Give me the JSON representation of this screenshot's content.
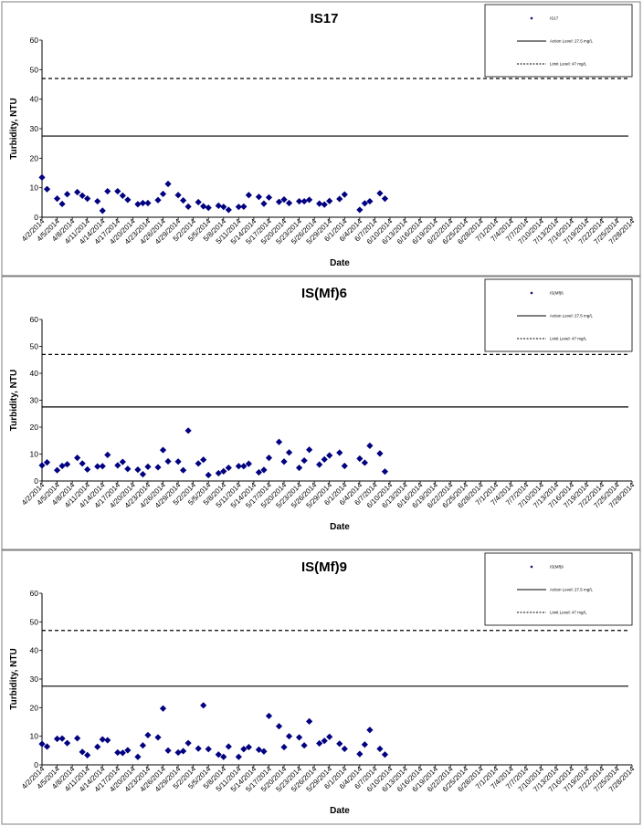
{
  "chart_data": [
    {
      "type": "scatter",
      "title": "IS17",
      "xlabel": "Date",
      "ylabel": "Turbidity, NTU",
      "ylim": [
        0,
        60
      ],
      "yticks": [
        0,
        10,
        20,
        30,
        40,
        50,
        60
      ],
      "legend_position": "top-right",
      "legend": [
        "IS17",
        "Action Level: 27.5 mg/L",
        "Limit Level: 47 mg/L"
      ],
      "action_level": 27.5,
      "limit_level": 47,
      "x_categories": [
        "4/2/2014",
        "4/5/2014",
        "4/8/2014",
        "4/11/2014",
        "4/14/2014",
        "4/17/2014",
        "4/20/2014",
        "4/23/2014",
        "4/26/2014",
        "4/29/2014",
        "5/2/2014",
        "5/5/2014",
        "5/8/2014",
        "5/11/2014",
        "5/14/2014",
        "5/17/2014",
        "5/20/2014",
        "5/23/2014",
        "5/26/2014",
        "5/29/2014",
        "6/1/2014",
        "6/4/2014",
        "6/7/2014",
        "6/10/2014",
        "6/13/2014",
        "6/16/2014",
        "6/19/2014",
        "6/22/2014",
        "6/25/2014",
        "6/28/2014",
        "7/1/2014",
        "7/4/2014",
        "7/7/2014",
        "7/10/2014",
        "7/13/2014",
        "7/16/2014",
        "7/19/2014",
        "7/22/2014",
        "7/25/2014",
        "7/28/2014"
      ],
      "points": [
        [
          "4/2/2014",
          13.5
        ],
        [
          "4/3/2014",
          9.5
        ],
        [
          "4/5/2014",
          6.3
        ],
        [
          "4/6/2014",
          4.5
        ],
        [
          "4/7/2014",
          7.8
        ],
        [
          "4/9/2014",
          8.5
        ],
        [
          "4/10/2014",
          7.3
        ],
        [
          "4/11/2014",
          6.3
        ],
        [
          "4/13/2014",
          5.4
        ],
        [
          "4/14/2014",
          2.2
        ],
        [
          "4/15/2014",
          8.8
        ],
        [
          "4/17/2014",
          8.8
        ],
        [
          "4/18/2014",
          7.3
        ],
        [
          "4/19/2014",
          5.9
        ],
        [
          "4/21/2014",
          4.4
        ],
        [
          "4/22/2014",
          4.8
        ],
        [
          "4/23/2014",
          4.8
        ],
        [
          "4/25/2014",
          5.8
        ],
        [
          "4/26/2014",
          7.9
        ],
        [
          "4/27/2014",
          11.3
        ],
        [
          "4/29/2014",
          7.5
        ],
        [
          "4/30/2014",
          5.7
        ],
        [
          "5/1/2014",
          3.6
        ],
        [
          "5/3/2014",
          5.1
        ],
        [
          "5/4/2014",
          3.7
        ],
        [
          "5/5/2014",
          3.2
        ],
        [
          "5/7/2014",
          3.9
        ],
        [
          "5/8/2014",
          3.5
        ],
        [
          "5/9/2014",
          2.5
        ],
        [
          "5/11/2014",
          3.5
        ],
        [
          "5/12/2014",
          3.6
        ],
        [
          "5/13/2014",
          7.5
        ],
        [
          "5/15/2014",
          6.9
        ],
        [
          "5/16/2014",
          4.6
        ],
        [
          "5/17/2014",
          6.7
        ],
        [
          "5/19/2014",
          5.2
        ],
        [
          "5/20/2014",
          6.0
        ],
        [
          "5/21/2014",
          4.8
        ],
        [
          "5/23/2014",
          5.4
        ],
        [
          "5/24/2014",
          5.4
        ],
        [
          "5/25/2014",
          5.9
        ],
        [
          "5/27/2014",
          4.6
        ],
        [
          "5/28/2014",
          4.3
        ],
        [
          "5/29/2014",
          5.5
        ],
        [
          "5/31/2014",
          6.2
        ],
        [
          "6/1/2014",
          7.7
        ],
        [
          "6/4/2014",
          2.5
        ],
        [
          "6/5/2014",
          4.7
        ],
        [
          "6/6/2014",
          5.4
        ],
        [
          "6/8/2014",
          8.1
        ],
        [
          "6/9/2014",
          6.3
        ]
      ]
    },
    {
      "type": "scatter",
      "title": "IS(Mf)6",
      "xlabel": "Date",
      "ylabel": "Turbidity, NTU",
      "ylim": [
        0,
        60
      ],
      "yticks": [
        0,
        10,
        20,
        30,
        40,
        50,
        60
      ],
      "legend_position": "top-right",
      "legend": [
        "IS(Mf)6",
        "Action Level: 27.5 mg/L",
        "Limit Level: 47 mg/L"
      ],
      "action_level": 27.5,
      "limit_level": 47,
      "x_categories": [
        "4/2/2014",
        "4/5/2014",
        "4/8/2014",
        "4/11/2014",
        "4/14/2014",
        "4/17/2014",
        "4/20/2014",
        "4/23/2014",
        "4/26/2014",
        "4/29/2014",
        "5/2/2014",
        "5/5/2014",
        "5/8/2014",
        "5/11/2014",
        "5/14/2014",
        "5/17/2014",
        "5/20/2014",
        "5/23/2014",
        "5/26/2014",
        "5/29/2014",
        "6/1/2014",
        "6/4/2014",
        "6/7/2014",
        "6/10/2014",
        "6/13/2014",
        "6/16/2014",
        "6/19/2014",
        "6/22/2014",
        "6/25/2014",
        "6/28/2014",
        "7/1/2014",
        "7/4/2014",
        "7/7/2014",
        "7/10/2014",
        "7/13/2014",
        "7/16/2014",
        "7/19/2014",
        "7/22/2014",
        "7/25/2014",
        "7/28/2014"
      ],
      "points": [
        [
          "4/2/2014",
          5.8
        ],
        [
          "4/3/2014",
          6.9
        ],
        [
          "4/5/2014",
          4.0
        ],
        [
          "4/6/2014",
          5.6
        ],
        [
          "4/7/2014",
          6.2
        ],
        [
          "4/9/2014",
          8.6
        ],
        [
          "4/10/2014",
          6.5
        ],
        [
          "4/11/2014",
          4.3
        ],
        [
          "4/13/2014",
          5.4
        ],
        [
          "4/14/2014",
          5.5
        ],
        [
          "4/15/2014",
          9.7
        ],
        [
          "4/17/2014",
          5.8
        ],
        [
          "4/18/2014",
          7.1
        ],
        [
          "4/19/2014",
          4.5
        ],
        [
          "4/21/2014",
          4.2
        ],
        [
          "4/22/2014",
          2.5
        ],
        [
          "4/23/2014",
          5.3
        ],
        [
          "4/25/2014",
          5.1
        ],
        [
          "4/26/2014",
          11.5
        ],
        [
          "4/27/2014",
          7.3
        ],
        [
          "4/29/2014",
          7.2
        ],
        [
          "4/30/2014",
          4.0
        ],
        [
          "5/1/2014",
          18.7
        ],
        [
          "5/3/2014",
          6.5
        ],
        [
          "5/4/2014",
          7.9
        ],
        [
          "5/5/2014",
          2.2
        ],
        [
          "5/7/2014",
          2.9
        ],
        [
          "5/8/2014",
          3.6
        ],
        [
          "5/9/2014",
          4.9
        ],
        [
          "5/11/2014",
          5.5
        ],
        [
          "5/12/2014",
          5.5
        ],
        [
          "5/13/2014",
          6.4
        ],
        [
          "5/15/2014",
          3.2
        ],
        [
          "5/16/2014",
          4.1
        ],
        [
          "5/17/2014",
          8.6
        ],
        [
          "5/19/2014",
          14.5
        ],
        [
          "5/20/2014",
          7.2
        ],
        [
          "5/21/2014",
          10.6
        ],
        [
          "5/23/2014",
          4.9
        ],
        [
          "5/24/2014",
          7.6
        ],
        [
          "5/25/2014",
          11.6
        ],
        [
          "5/27/2014",
          6.1
        ],
        [
          "5/28/2014",
          8.0
        ],
        [
          "5/29/2014",
          9.5
        ],
        [
          "5/31/2014",
          10.5
        ],
        [
          "6/1/2014",
          5.6
        ],
        [
          "6/4/2014",
          8.3
        ],
        [
          "6/5/2014",
          6.8
        ],
        [
          "6/6/2014",
          13.1
        ],
        [
          "6/8/2014",
          10.2
        ],
        [
          "6/9/2014",
          3.5
        ]
      ]
    },
    {
      "type": "scatter",
      "title": "IS(Mf)9",
      "xlabel": "Date",
      "ylabel": "Turbidity, NTU",
      "ylim": [
        0,
        60
      ],
      "yticks": [
        0,
        10,
        20,
        30,
        40,
        50,
        60
      ],
      "legend_position": "top-right",
      "legend": [
        "IS(Mf)9",
        "Action Level: 27.5 mg/L",
        "Limit Level: 47 mg/L"
      ],
      "action_level": 27.5,
      "limit_level": 47,
      "x_categories": [
        "4/2/2014",
        "4/5/2014",
        "4/8/2014",
        "4/11/2014",
        "4/14/2014",
        "4/17/2014",
        "4/20/2014",
        "4/23/2014",
        "4/26/2014",
        "4/29/2014",
        "5/2/2014",
        "5/5/2014",
        "5/8/2014",
        "5/11/2014",
        "5/14/2014",
        "5/17/2014",
        "5/20/2014",
        "5/23/2014",
        "5/26/2014",
        "5/29/2014",
        "6/1/2014",
        "6/4/2014",
        "6/7/2014",
        "6/10/2014",
        "6/13/2014",
        "6/16/2014",
        "6/19/2014",
        "6/22/2014",
        "6/25/2014",
        "6/28/2014",
        "7/1/2014",
        "7/4/2014",
        "7/7/2014",
        "7/10/2014",
        "7/13/2014",
        "7/16/2014",
        "7/19/2014",
        "7/22/2014",
        "7/25/2014",
        "7/28/2014"
      ],
      "points": [
        [
          "4/2/2014",
          7.3
        ],
        [
          "4/3/2014",
          6.4
        ],
        [
          "4/5/2014",
          9.1
        ],
        [
          "4/6/2014",
          9.2
        ],
        [
          "4/7/2014",
          7.6
        ],
        [
          "4/9/2014",
          9.3
        ],
        [
          "4/10/2014",
          4.5
        ],
        [
          "4/11/2014",
          3.4
        ],
        [
          "4/13/2014",
          6.3
        ],
        [
          "4/14/2014",
          8.9
        ],
        [
          "4/15/2014",
          8.6
        ],
        [
          "4/17/2014",
          4.3
        ],
        [
          "4/18/2014",
          4.2
        ],
        [
          "4/19/2014",
          5.1
        ],
        [
          "4/21/2014",
          2.8
        ],
        [
          "4/22/2014",
          6.8
        ],
        [
          "4/23/2014",
          10.4
        ],
        [
          "4/25/2014",
          9.6
        ],
        [
          "4/26/2014",
          19.7
        ],
        [
          "4/27/2014",
          5.0
        ],
        [
          "4/29/2014",
          4.3
        ],
        [
          "4/30/2014",
          4.8
        ],
        [
          "5/1/2014",
          7.6
        ],
        [
          "5/3/2014",
          5.7
        ],
        [
          "5/4/2014",
          20.8
        ],
        [
          "5/5/2014",
          5.5
        ],
        [
          "5/7/2014",
          3.6
        ],
        [
          "5/8/2014",
          2.8
        ],
        [
          "5/9/2014",
          6.4
        ],
        [
          "5/11/2014",
          2.8
        ],
        [
          "5/12/2014",
          5.5
        ],
        [
          "5/13/2014",
          6.2
        ],
        [
          "5/15/2014",
          5.3
        ],
        [
          "5/16/2014",
          4.7
        ],
        [
          "5/17/2014",
          17.1
        ],
        [
          "5/19/2014",
          13.5
        ],
        [
          "5/20/2014",
          6.2
        ],
        [
          "5/21/2014",
          10.0
        ],
        [
          "5/23/2014",
          9.6
        ],
        [
          "5/24/2014",
          6.8
        ],
        [
          "5/25/2014",
          15.2
        ],
        [
          "5/27/2014",
          7.5
        ],
        [
          "5/28/2014",
          8.4
        ],
        [
          "5/29/2014",
          9.8
        ],
        [
          "5/31/2014",
          7.4
        ],
        [
          "6/1/2014",
          5.6
        ],
        [
          "6/4/2014",
          3.8
        ],
        [
          "6/5/2014",
          7.1
        ],
        [
          "6/6/2014",
          12.2
        ],
        [
          "6/8/2014",
          5.6
        ],
        [
          "6/9/2014",
          3.6
        ]
      ]
    }
  ]
}
